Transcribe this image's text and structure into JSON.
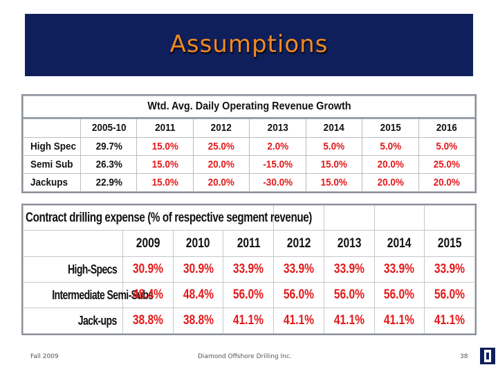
{
  "title": "Assumptions",
  "table1": {
    "caption": "Wtd. Avg. Daily Operating Revenue Growth",
    "columns": [
      "",
      "2005-10",
      "2011",
      "2012",
      "2013",
      "2014",
      "2015",
      "2016"
    ],
    "rows": [
      {
        "label": "High Spec",
        "values": [
          "29.7%",
          "15.0%",
          "25.0%",
          "2.0%",
          "5.0%",
          "5.0%",
          "5.0%"
        ]
      },
      {
        "label": "Semi Sub",
        "values": [
          "26.3%",
          "15.0%",
          "20.0%",
          "-15.0%",
          "15.0%",
          "20.0%",
          "25.0%"
        ]
      },
      {
        "label": "Jackups",
        "values": [
          "22.9%",
          "15.0%",
          "20.0%",
          "-30.0%",
          "15.0%",
          "20.0%",
          "20.0%"
        ]
      }
    ]
  },
  "table2": {
    "caption": "Contract drilling expense (% of respective segment revenue)",
    "columns": [
      "",
      "2009",
      "2010",
      "2011",
      "2012",
      "2013",
      "2014",
      "2015"
    ],
    "rows": [
      {
        "label": "High-Specs",
        "values": [
          "30.9%",
          "30.9%",
          "33.9%",
          "33.9%",
          "33.9%",
          "33.9%",
          "33.9%"
        ]
      },
      {
        "label": "Intermediate Semi-Subs",
        "values": [
          "48.4%",
          "48.4%",
          "56.0%",
          "56.0%",
          "56.0%",
          "56.0%",
          "56.0%"
        ]
      },
      {
        "label": "Jack-ups",
        "values": [
          "38.8%",
          "38.8%",
          "41.1%",
          "41.1%",
          "41.1%",
          "41.1%",
          "41.1%"
        ]
      }
    ]
  },
  "footer": {
    "left": "Fall 2009",
    "center": "Diamond Offshore Drilling Inc.",
    "page": "38"
  },
  "colors": {
    "title_bar": "#0f1f5c",
    "title_text": "#f08a24",
    "projection_red": "#e3191a"
  },
  "logo_icon": "block-i-logo"
}
